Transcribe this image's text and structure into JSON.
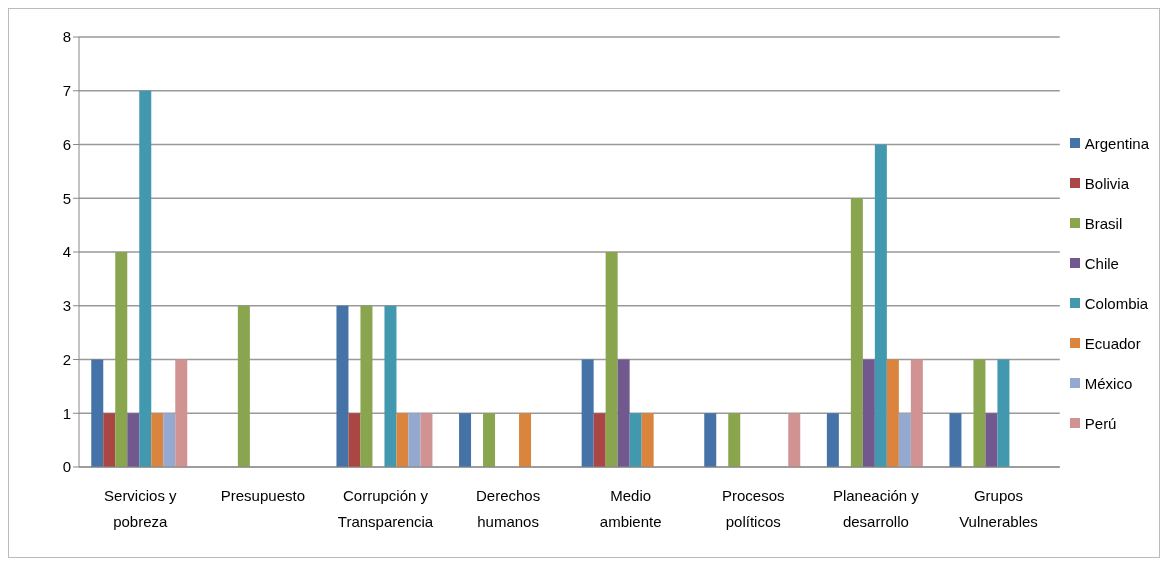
{
  "chart_data": {
    "type": "bar",
    "categories": [
      "Servicios y pobreza",
      "Presupuesto",
      "Corrupción y Transparencia",
      "Derechos humanos",
      "Medio ambiente",
      "Procesos políticos",
      "Planeación y desarrollo",
      "Grupos Vulnerables"
    ],
    "series": [
      {
        "name": "Argentina",
        "color": "#4572a7",
        "values": [
          2,
          0,
          3,
          1,
          2,
          1,
          1,
          1
        ]
      },
      {
        "name": "Bolivia",
        "color": "#aa4643",
        "values": [
          1,
          0,
          1,
          0,
          1,
          0,
          0,
          0
        ]
      },
      {
        "name": "Brasil",
        "color": "#89a54e",
        "values": [
          4,
          3,
          3,
          1,
          4,
          1,
          5,
          2
        ]
      },
      {
        "name": "Chile",
        "color": "#71588f",
        "values": [
          1,
          0,
          0,
          0,
          2,
          0,
          2,
          1
        ]
      },
      {
        "name": "Colombia",
        "color": "#4198af",
        "values": [
          7,
          0,
          3,
          0,
          1,
          0,
          6,
          2
        ]
      },
      {
        "name": "Ecuador",
        "color": "#db843d",
        "values": [
          1,
          0,
          1,
          1,
          1,
          0,
          2,
          0
        ]
      },
      {
        "name": "México",
        "color": "#93a9cf",
        "values": [
          1,
          0,
          1,
          0,
          0,
          0,
          1,
          0
        ]
      },
      {
        "name": "Perú",
        "color": "#d19392",
        "values": [
          2,
          0,
          1,
          0,
          0,
          1,
          2,
          0
        ]
      }
    ],
    "ylim": [
      0,
      8
    ],
    "yticks": [
      0,
      1,
      2,
      3,
      4,
      5,
      6,
      7,
      8
    ],
    "grid": "y",
    "legend": "right"
  }
}
